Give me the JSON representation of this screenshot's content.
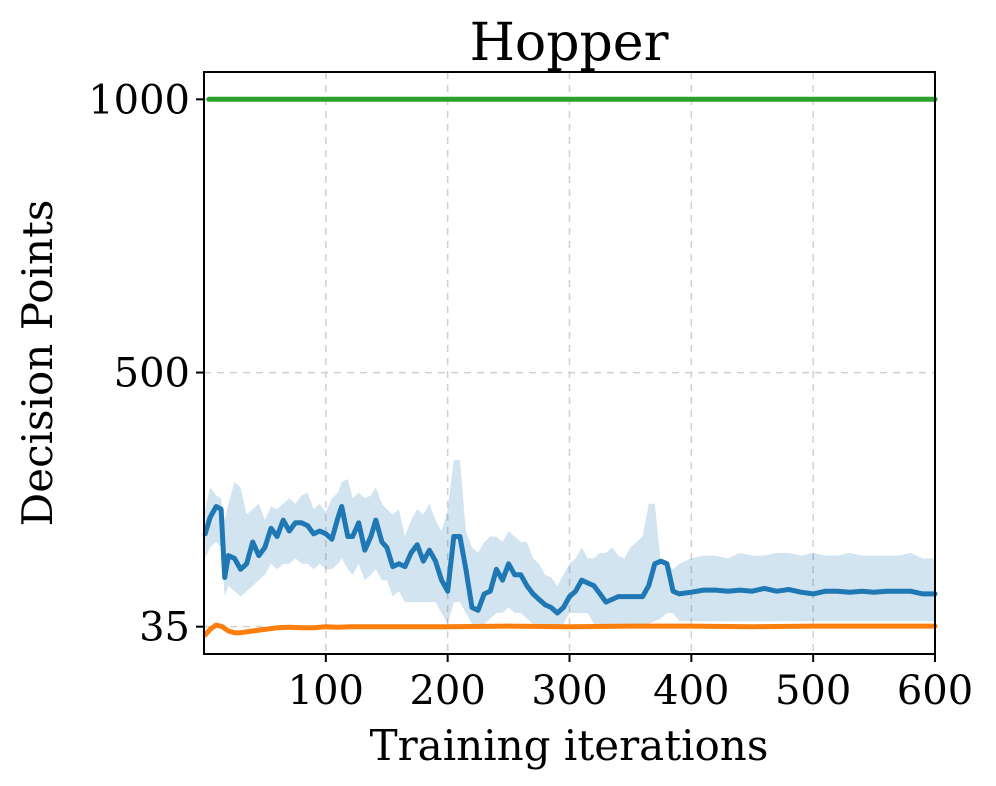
{
  "chart_data": {
    "type": "line",
    "title": "Hopper",
    "xlabel": "Training iterations",
    "ylabel": "Decision Points",
    "xlim": [
      0,
      600
    ],
    "ylim": [
      -15,
      1050
    ],
    "xticks": [
      100,
      200,
      300,
      400,
      500,
      600
    ],
    "xtick_labels": [
      "100",
      "200",
      "300",
      "400",
      "500",
      "600"
    ],
    "yticks": [
      35,
      500,
      1000
    ],
    "ytick_labels": [
      "35",
      "500",
      "1000"
    ],
    "grid": true,
    "series": [
      {
        "color": "#2ca02c",
        "x": [
          4,
          600
        ],
        "y": [
          1000,
          1000
        ]
      },
      {
        "color": "#1f77b4",
        "band_color": "#1f77b4",
        "band_opacity": 0.2,
        "x": [
          1,
          5,
          10,
          14,
          17,
          20,
          25,
          30,
          35,
          40,
          45,
          50,
          55,
          60,
          65,
          70,
          75,
          80,
          85,
          90,
          95,
          100,
          105,
          110,
          113,
          118,
          122,
          127,
          132,
          137,
          141,
          146,
          150,
          155,
          160,
          165,
          170,
          175,
          180,
          185,
          190,
          195,
          200,
          205,
          210,
          215,
          220,
          225,
          230,
          235,
          240,
          245,
          250,
          255,
          260,
          265,
          270,
          275,
          280,
          285,
          290,
          295,
          300,
          305,
          310,
          315,
          320,
          325,
          330,
          335,
          340,
          345,
          350,
          355,
          360,
          365,
          370,
          375,
          380,
          385,
          390,
          400,
          410,
          420,
          430,
          440,
          450,
          460,
          470,
          480,
          490,
          500,
          510,
          520,
          530,
          540,
          550,
          560,
          570,
          580,
          590,
          600
        ],
        "y": [
          205,
          235,
          255,
          250,
          125,
          165,
          160,
          140,
          150,
          190,
          165,
          180,
          215,
          200,
          230,
          210,
          225,
          225,
          220,
          205,
          210,
          205,
          195,
          235,
          255,
          200,
          200,
          225,
          175,
          200,
          230,
          190,
          180,
          145,
          150,
          145,
          170,
          185,
          155,
          175,
          155,
          120,
          100,
          200,
          200,
          140,
          70,
          65,
          95,
          100,
          140,
          120,
          150,
          130,
          130,
          110,
          95,
          85,
          75,
          70,
          60,
          70,
          90,
          100,
          120,
          115,
          110,
          95,
          80,
          85,
          90,
          90,
          90,
          90,
          90,
          110,
          150,
          155,
          150,
          100,
          95,
          98,
          102,
          102,
          100,
          102,
          100,
          105,
          100,
          103,
          98,
          95,
          100,
          100,
          98,
          100,
          98,
          100,
          100,
          100,
          95,
          95
        ],
        "y_upper": [
          250,
          290,
          275,
          270,
          230,
          260,
          300,
          290,
          240,
          250,
          260,
          230,
          255,
          250,
          260,
          270,
          260,
          275,
          280,
          250,
          260,
          245,
          270,
          280,
          300,
          305,
          270,
          280,
          270,
          275,
          290,
          260,
          250,
          240,
          250,
          200,
          230,
          250,
          240,
          260,
          230,
          210,
          250,
          340,
          340,
          210,
          180,
          170,
          190,
          200,
          200,
          190,
          210,
          200,
          190,
          190,
          160,
          150,
          130,
          125,
          110,
          130,
          150,
          160,
          180,
          160,
          160,
          170,
          170,
          180,
          165,
          160,
          180,
          190,
          200,
          260,
          260,
          150,
          150,
          140,
          150,
          160,
          165,
          165,
          160,
          170,
          165,
          165,
          170,
          170,
          165,
          170,
          165,
          165,
          170,
          165,
          165,
          165,
          165,
          170,
          160,
          160
        ],
        "y_lower": [
          160,
          180,
          190,
          180,
          90,
          110,
          100,
          90,
          100,
          110,
          120,
          130,
          150,
          140,
          150,
          150,
          160,
          150,
          150,
          140,
          150,
          140,
          140,
          150,
          160,
          140,
          130,
          150,
          120,
          130,
          140,
          120,
          120,
          90,
          100,
          80,
          80,
          80,
          80,
          80,
          80,
          60,
          40,
          80,
          80,
          60,
          40,
          35,
          40,
          50,
          60,
          60,
          70,
          60,
          60,
          50,
          40,
          40,
          40,
          35,
          30,
          40,
          60,
          60,
          60,
          60,
          40,
          40,
          35,
          40,
          35,
          40,
          40,
          40,
          40,
          40,
          45,
          50,
          60,
          60,
          45,
          45,
          45,
          45,
          45,
          45,
          45,
          45,
          45,
          45,
          45,
          45,
          45,
          45,
          45,
          45,
          45,
          45,
          45,
          45,
          45,
          45
        ]
      },
      {
        "color": "#ff7f0e",
        "x": [
          1,
          5,
          10,
          15,
          20,
          25,
          30,
          40,
          50,
          60,
          70,
          80,
          90,
          100,
          110,
          120,
          150,
          200,
          250,
          300,
          350,
          400,
          450,
          500,
          550,
          600
        ],
        "y": [
          20,
          30,
          38,
          35,
          27,
          24,
          24,
          27,
          30,
          33,
          34,
          33,
          33,
          35,
          34,
          35,
          35,
          35,
          36,
          35,
          36,
          36,
          35,
          36,
          36,
          36
        ]
      }
    ]
  }
}
